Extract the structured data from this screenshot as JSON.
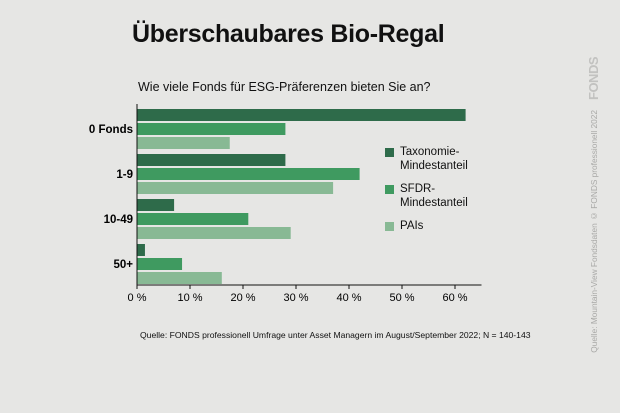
{
  "title": "Überschaubares Bio-Regal",
  "subtitle": "Wie viele Fonds für ESG-Präferenzen bieten Sie an?",
  "source": "Quelle: FONDS professionell Umfrage unter Asset Managern im August/September 2022; N = 140-143",
  "logo": "FONDS",
  "credit": "Quelle: Mountain-View Fondsdaten   © FONDS professionell 2022",
  "colors": {
    "taxonomie": "#2e6b4a",
    "sfdr": "#3f9a60",
    "pais": "#88b994",
    "background": "#e6e6e4"
  },
  "chart_data": {
    "type": "bar",
    "orientation": "horizontal",
    "categories": [
      "0 Fonds",
      "1-9",
      "10-49",
      "50+"
    ],
    "series": [
      {
        "name": "Taxonomie-\nMindestanteil",
        "values": [
          62,
          28,
          7,
          1.5
        ]
      },
      {
        "name": "SFDR-\nMindestanteil",
        "values": [
          28,
          42,
          21,
          8.5
        ]
      },
      {
        "name": "PAIs",
        "values": [
          17.5,
          37,
          29,
          16
        ]
      }
    ],
    "xlim": [
      0,
      65
    ],
    "x_ticks": [
      0,
      10,
      20,
      30,
      40,
      50,
      60
    ],
    "x_tick_labels": [
      "0 %",
      "10 %",
      "20 %",
      "30 %",
      "40 %",
      "50 %",
      "60 %"
    ],
    "legend_position": "right",
    "grid": false
  }
}
